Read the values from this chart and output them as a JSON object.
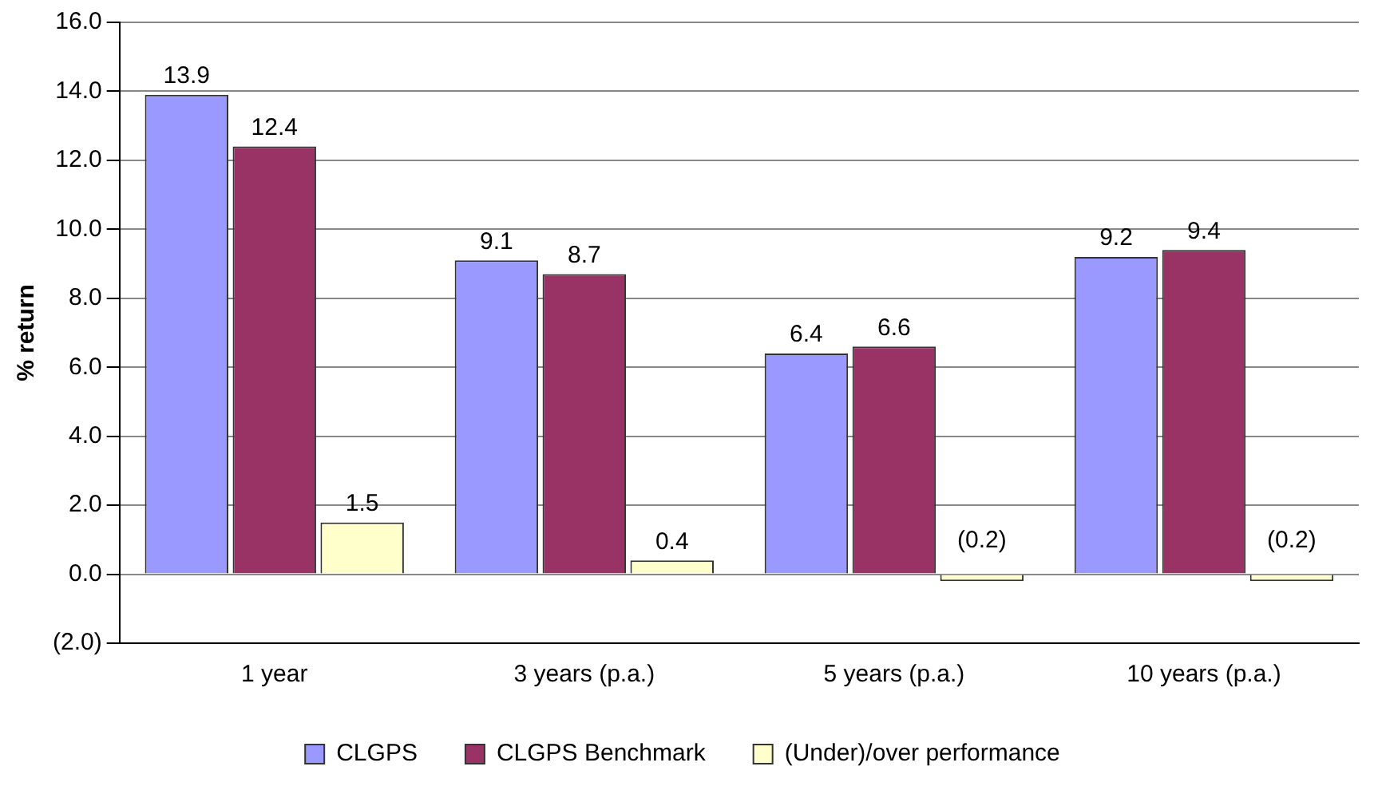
{
  "chart_data": {
    "type": "bar",
    "ylabel": "% return",
    "categories": [
      "1 year",
      "3 years (p.a.)",
      "5 years (p.a.)",
      "10 years (p.a.)"
    ],
    "series": [
      {
        "name": "CLGPS",
        "color": "#9999ff",
        "values": [
          13.9,
          9.1,
          6.4,
          9.2
        ],
        "value_labels": [
          "13.9",
          "9.1",
          "6.4",
          "9.2"
        ]
      },
      {
        "name": "CLGPS Benchmark",
        "color": "#993366",
        "values": [
          12.4,
          8.7,
          6.6,
          9.4
        ],
        "value_labels": [
          "12.4",
          "8.7",
          "6.6",
          "9.4"
        ]
      },
      {
        "name": "(Under)/over performance",
        "color": "#ffffcc",
        "values": [
          1.5,
          0.4,
          -0.2,
          -0.2
        ],
        "value_labels": [
          "1.5",
          "0.4",
          "(0.2)",
          "(0.2)"
        ]
      }
    ],
    "ylim": [
      -2,
      16
    ],
    "yticks": [
      {
        "value": -2,
        "label": "(2.0)"
      },
      {
        "value": 0,
        "label": "0.0"
      },
      {
        "value": 2,
        "label": "2.0"
      },
      {
        "value": 4,
        "label": "4.0"
      },
      {
        "value": 6,
        "label": "6.0"
      },
      {
        "value": 8,
        "label": "8.0"
      },
      {
        "value": 10,
        "label": "10.0"
      },
      {
        "value": 12,
        "label": "12.0"
      },
      {
        "value": 14,
        "label": "14.0"
      },
      {
        "value": 16,
        "label": "16.0"
      }
    ],
    "grid": "y",
    "legend": "bottom"
  }
}
